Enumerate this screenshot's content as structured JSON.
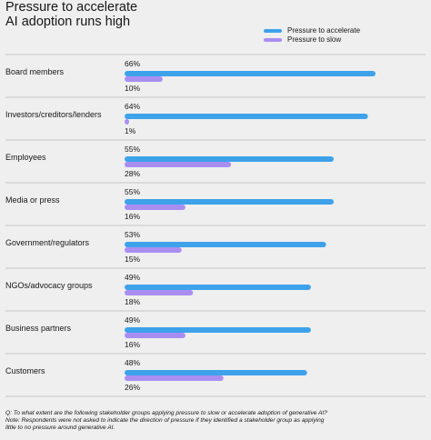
{
  "colors": {
    "accelerate": "#3ea2ea",
    "slow": "#a98ef2",
    "divider": "#c6c6c6",
    "text": "#161616"
  },
  "chart_data": {
    "type": "bar",
    "title": "Pressure to accelerate AI adoption runs high",
    "title_lines": [
      "Pressure to accelerate",
      "AI adoption runs high"
    ],
    "xlim": [
      0,
      66
    ],
    "legend_position": "top-right",
    "categories": [
      "Board members",
      "Investors/creditors/lenders",
      "Employees",
      "Media or press",
      "Government/regulators",
      "NGOs/advocacy groups",
      "Business partners",
      "Customers"
    ],
    "series": [
      {
        "name": "Pressure to accelerate",
        "values": [
          66,
          64,
          55,
          55,
          53,
          49,
          49,
          48
        ]
      },
      {
        "name": "Pressure to slow",
        "values": [
          10,
          1,
          28,
          16,
          15,
          18,
          16,
          26
        ]
      }
    ],
    "value_labels": {
      "accelerate": [
        "66%",
        "64%",
        "55%",
        "55%",
        "53%",
        "49%",
        "49%",
        "48%"
      ],
      "slow": [
        "10%",
        "1%",
        "28%",
        "16%",
        "15%",
        "18%",
        "16%",
        "26%"
      ]
    }
  },
  "footnote": {
    "line1": "Q: To what extent are the following stakeholder groups applying pressure to slow or accelerate adoption of generative AI?",
    "line2": "Note: Respondents were not asked to indicate the direction of pressure if they identified a stakeholder group as applying",
    "line3": "little to no pressure around generative AI."
  }
}
